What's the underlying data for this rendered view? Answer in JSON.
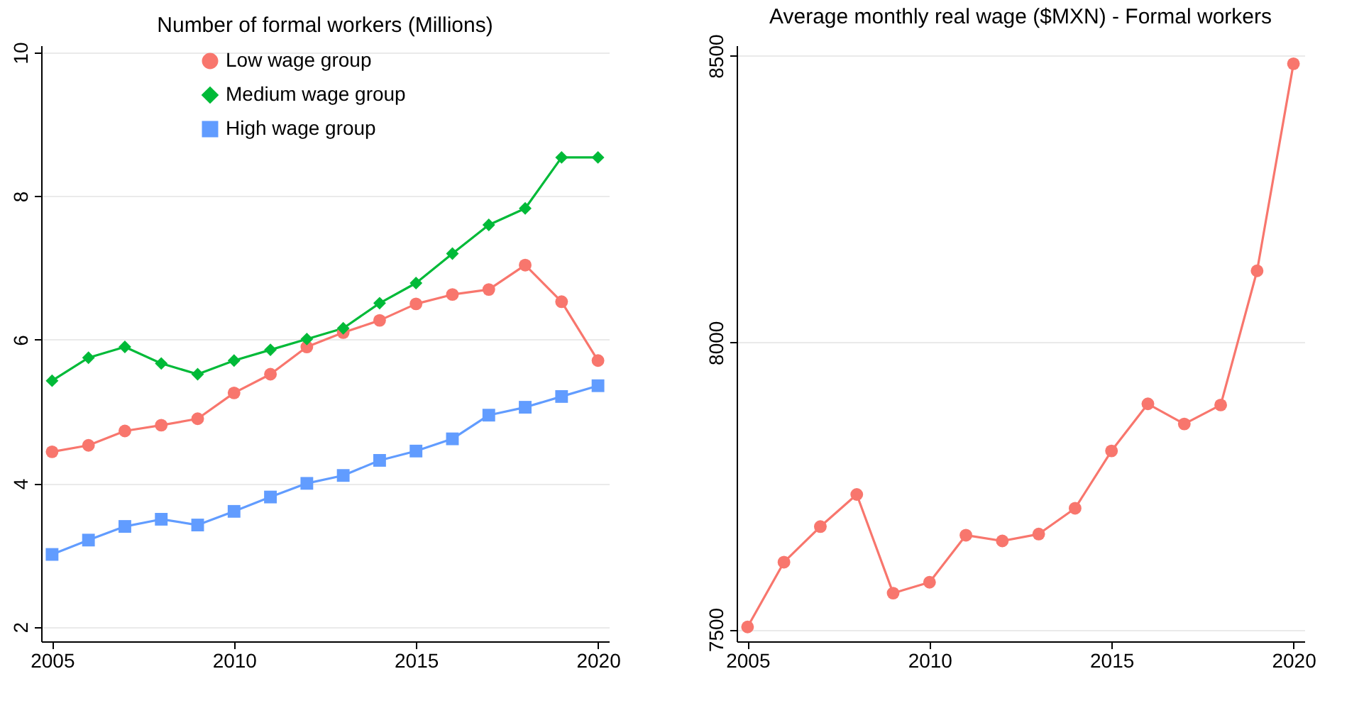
{
  "chart_data": [
    {
      "type": "line",
      "title": "Number of formal workers (Millions)",
      "x": [
        2005,
        2006,
        2007,
        2008,
        2009,
        2010,
        2011,
        2012,
        2013,
        2014,
        2015,
        2016,
        2017,
        2018,
        2019,
        2020
      ],
      "xlim": [
        2004.7,
        2020.3
      ],
      "xticks": [
        2005,
        2010,
        2015,
        2020
      ],
      "ylim": [
        1.8,
        10.1
      ],
      "yticks": [
        2,
        4,
        6,
        8,
        10
      ],
      "grid": "y",
      "legend": "top",
      "series": [
        {
          "name": "Low wage group",
          "color": "#f8766d",
          "marker": "circle",
          "values": [
            4.44,
            4.53,
            4.73,
            4.81,
            4.9,
            5.26,
            5.52,
            5.9,
            6.1,
            6.27,
            6.5,
            6.63,
            6.7,
            7.04,
            6.53,
            5.71
          ]
        },
        {
          "name": "Medium wage group",
          "color": "#00ba38",
          "marker": "diamond",
          "values": [
            5.43,
            5.75,
            5.9,
            5.67,
            5.52,
            5.71,
            5.86,
            6.01,
            6.16,
            6.51,
            6.79,
            7.2,
            7.6,
            7.83,
            8.54,
            8.54
          ]
        },
        {
          "name": "High wage group",
          "color": "#619cff",
          "marker": "square",
          "values": [
            3.01,
            3.21,
            3.4,
            3.5,
            3.42,
            3.61,
            3.81,
            4.0,
            4.11,
            4.32,
            4.45,
            4.62,
            4.95,
            5.06,
            5.21,
            5.36
          ]
        }
      ]
    },
    {
      "type": "line",
      "title": "Average monthly real wage ($MXN) - Formal workers",
      "x": [
        2005,
        2006,
        2007,
        2008,
        2009,
        2010,
        2011,
        2012,
        2013,
        2014,
        2015,
        2016,
        2017,
        2018,
        2019,
        2020
      ],
      "xlim": [
        2004.7,
        2020.3
      ],
      "xticks": [
        2005,
        2010,
        2015,
        2020
      ],
      "ylim": [
        7479,
        8518
      ],
      "yticks": [
        7500,
        8000,
        8500
      ],
      "grid": "y",
      "marker": "circle",
      "series": [
        {
          "color": "#f8766d",
          "values": [
            7504,
            7617,
            7679,
            7735,
            7563,
            7582,
            7664,
            7654,
            7666,
            7711,
            7811,
            7893,
            7858,
            7891,
            8125,
            8486
          ]
        }
      ]
    }
  ]
}
